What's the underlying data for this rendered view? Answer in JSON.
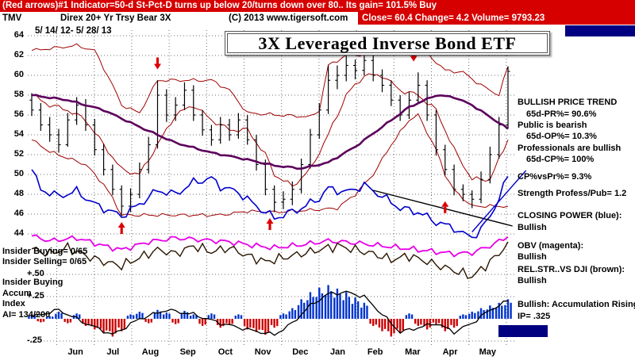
{
  "header": {
    "banner": "(Red arrows)#1 Indicator=50-d St-Pct-D turns up below 20/turns down over 80.. Its gain= 101.5% Buy",
    "symbol": "TMV",
    "name": "Direx 20+ Yr Trsy Bear 3X",
    "copyright": "(C) 2013 www.tigersoft.com",
    "quote": "Close= 60.4 Change= 4.2 Volume= 9793.23",
    "banner_color": "#d60000"
  },
  "chart": {
    "title": "3X Leveraged Inverse Bond ETF",
    "date_range": "5/ 14/ 12- 5/ 28/ 13"
  },
  "left_labels": {
    "insider_buying": "Insider Buying= 0/65",
    "insider_selling": "Insider Selling= 0/65",
    "insider_buying2": "Insider Buying",
    "accum": "Accum",
    "index": "Index",
    "ai": "AI= 134/200"
  },
  "right_panel": {
    "lines": [
      {
        "text": "BULLISH PRICE TREND"
      },
      {
        "text": "65d-PR%= 90.6%"
      },
      {
        "text": "Public is bearish"
      },
      {
        "text": "65d-OP%= 10.3%"
      },
      {
        "text": "Professionals are bullish"
      },
      {
        "text": "65d-CP%= 100%"
      },
      {
        "text": "CP%vsPr%= 9.3%"
      },
      {
        "text": "Strength Profess/Pub= 1.2"
      },
      {
        "text": "CLOSING POWER (blue):"
      },
      {
        "text": "Bullish"
      },
      {
        "text": "OBV (magenta):"
      },
      {
        "text": "Bullish"
      },
      {
        "text": "REL.STR..VS DJI (brown):"
      },
      {
        "text": "Bullish"
      },
      {
        "text": "Bullish: Accumulation Rising"
      },
      {
        "text": "IP= .325"
      }
    ]
  },
  "chart_data": {
    "type": "candlestick",
    "title": "3X Leveraged Inverse Bond ETF",
    "date_range": "5/14/12 - 5/28/13",
    "ylim": [
      44,
      64
    ],
    "accum_range": [
      -0.25,
      0.5
    ],
    "axes": {
      "price_ticks": [
        64,
        62,
        60,
        58,
        56,
        54,
        52,
        50,
        48,
        46,
        44
      ],
      "accum_ticks": [
        {
          "label": "+.50",
          "v": 0.5
        },
        {
          "label": "+.25",
          "v": 0.25
        },
        {
          "label": "-.25",
          "v": -0.25
        }
      ],
      "months": [
        "Jun",
        "Jul",
        "Aug",
        "Sep",
        "Oct",
        "Nov",
        "Dec",
        "Jan",
        "Feb",
        "Mar",
        "Apr",
        "May"
      ]
    },
    "colors": {
      "candle": "#000000",
      "band": "#a00000",
      "ma": "#5c005c",
      "closing_power": "#0000cc",
      "obv": "#e800e8",
      "rel_str": "#2a1600",
      "accum_up": "#0033cc",
      "accum_down": "#cc0000",
      "arrow": "#dd0000",
      "grid": "#707070"
    },
    "candles": [
      [
        57.5,
        58.2,
        55.9,
        56.5
      ],
      [
        56.5,
        57.2,
        54.4,
        55.0
      ],
      [
        55.0,
        55.8,
        53.3,
        54.0
      ],
      [
        54.0,
        54.6,
        52.2,
        53.0
      ],
      [
        53.0,
        56.2,
        52.8,
        55.5
      ],
      [
        55.5,
        57.8,
        55.0,
        57.0
      ],
      [
        57.0,
        57.6,
        54.4,
        55.0
      ],
      [
        55.0,
        55.6,
        51.9,
        52.5
      ],
      [
        52.5,
        53.1,
        49.9,
        50.5
      ],
      [
        50.5,
        51.0,
        47.9,
        48.5
      ],
      [
        48.5,
        48.9,
        45.8,
        46.8
      ],
      [
        46.8,
        48.6,
        46.2,
        48.0
      ],
      [
        48.0,
        51.2,
        47.6,
        50.5
      ],
      [
        50.5,
        53.8,
        50.1,
        53.0
      ],
      [
        53.0,
        59.5,
        52.6,
        58.0
      ],
      [
        58.0,
        58.6,
        55.3,
        56.0
      ],
      [
        56.0,
        57.8,
        55.4,
        57.0
      ],
      [
        57.0,
        59.3,
        56.5,
        58.5
      ],
      [
        58.5,
        59.0,
        55.4,
        56.0
      ],
      [
        56.0,
        56.5,
        53.9,
        54.5
      ],
      [
        54.5,
        55.0,
        52.9,
        53.5
      ],
      [
        53.5,
        55.8,
        53.1,
        55.0
      ],
      [
        55.0,
        55.6,
        53.4,
        54.0
      ],
      [
        54.0,
        56.2,
        53.6,
        55.5
      ],
      [
        55.5,
        56.0,
        53.0,
        53.5
      ],
      [
        53.5,
        54.0,
        50.4,
        51.0
      ],
      [
        51.0,
        51.5,
        47.9,
        48.5
      ],
      [
        48.5,
        48.9,
        46.2,
        47.2
      ],
      [
        47.2,
        48.3,
        46.5,
        47.5
      ],
      [
        47.5,
        49.3,
        46.9,
        48.5
      ],
      [
        48.5,
        51.6,
        48.1,
        51.0
      ],
      [
        51.0,
        54.6,
        50.6,
        54.0
      ],
      [
        54.0,
        57.2,
        53.6,
        56.5
      ],
      [
        56.5,
        61.0,
        56.1,
        59.5
      ],
      [
        59.5,
        61.0,
        58.6,
        60.0
      ],
      [
        60.0,
        62.0,
        59.4,
        61.0
      ],
      [
        61.0,
        61.6,
        59.6,
        60.5
      ],
      [
        60.5,
        62.2,
        60.0,
        61.5
      ],
      [
        61.5,
        62.0,
        59.4,
        60.0
      ],
      [
        60.0,
        60.6,
        58.3,
        59.0
      ],
      [
        59.0,
        59.5,
        56.9,
        57.5
      ],
      [
        57.5,
        58.0,
        55.4,
        56.0
      ],
      [
        56.0,
        58.3,
        55.6,
        57.5
      ],
      [
        57.5,
        60.3,
        57.1,
        59.0
      ],
      [
        59.0,
        59.5,
        55.4,
        56.0
      ],
      [
        56.0,
        56.5,
        51.9,
        52.5
      ],
      [
        52.5,
        53.0,
        49.9,
        50.5
      ],
      [
        50.5,
        51.0,
        47.9,
        48.5
      ],
      [
        48.5,
        49.0,
        47.3,
        48.0
      ],
      [
        48.0,
        48.4,
        46.6,
        47.5
      ],
      [
        47.5,
        50.3,
        47.1,
        49.5
      ],
      [
        49.5,
        52.8,
        49.1,
        52.0
      ],
      [
        52.0,
        55.8,
        51.6,
        55.0
      ],
      [
        55.0,
        60.9,
        54.6,
        60.4
      ]
    ],
    "series": {
      "upper_band": [
        [
          0,
          62.5
        ],
        [
          3,
          62.8
        ],
        [
          5,
          63.0
        ],
        [
          7,
          62.5
        ],
        [
          9,
          59.0
        ],
        [
          10,
          57.0
        ],
        [
          12,
          56.2
        ],
        [
          14,
          59.5
        ],
        [
          20,
          59.5
        ],
        [
          22,
          58.5
        ],
        [
          24,
          56.2
        ],
        [
          31,
          55.8
        ],
        [
          32,
          56.5
        ],
        [
          33,
          61.0
        ],
        [
          35,
          62.0
        ],
        [
          38,
          62.2
        ],
        [
          44,
          62.2
        ],
        [
          46,
          60.5
        ],
        [
          48,
          60.3
        ],
        [
          50,
          59.0
        ],
        [
          52,
          58.0
        ],
        [
          53,
          60.9
        ]
      ],
      "lower_band": [
        [
          0,
          53.5
        ],
        [
          2,
          52.3
        ],
        [
          6,
          51.0
        ],
        [
          8,
          49.0
        ],
        [
          9,
          47.6
        ],
        [
          10,
          45.9
        ],
        [
          21,
          45.9
        ],
        [
          24,
          46.3
        ],
        [
          27,
          46.2
        ],
        [
          31,
          46.4
        ],
        [
          34,
          46.6
        ],
        [
          36,
          48.0
        ],
        [
          38,
          50.0
        ],
        [
          40,
          53.0
        ],
        [
          42,
          55.5
        ],
        [
          43,
          56.0
        ],
        [
          45,
          52.5
        ],
        [
          46,
          50.0
        ],
        [
          47,
          48.4
        ],
        [
          49,
          46.8
        ],
        [
          53,
          46.8
        ]
      ],
      "mid_band": [
        [
          0,
          58.0
        ],
        [
          2,
          57.0
        ],
        [
          4,
          56.5
        ],
        [
          6,
          55.5
        ],
        [
          8,
          53.0
        ],
        [
          10,
          50.5
        ],
        [
          12,
          50.0
        ],
        [
          14,
          53.0
        ],
        [
          16,
          56.0
        ],
        [
          18,
          57.0
        ],
        [
          20,
          55.5
        ],
        [
          22,
          54.5
        ],
        [
          24,
          54.5
        ],
        [
          26,
          52.0
        ],
        [
          27,
          50.0
        ],
        [
          29,
          48.8
        ],
        [
          31,
          50.5
        ],
        [
          33,
          54.0
        ],
        [
          35,
          58.0
        ],
        [
          37,
          60.0
        ],
        [
          39,
          60.0
        ],
        [
          41,
          58.5
        ],
        [
          43,
          58.0
        ],
        [
          45,
          56.5
        ],
        [
          47,
          52.5
        ],
        [
          49,
          49.5
        ],
        [
          51,
          49.5
        ],
        [
          53,
          53.5
        ]
      ],
      "ma": [
        [
          0,
          58.0
        ],
        [
          4,
          57.5
        ],
        [
          8,
          56.5
        ],
        [
          12,
          54.8
        ],
        [
          16,
          53.2
        ],
        [
          20,
          52.2
        ],
        [
          24,
          51.5
        ],
        [
          27,
          50.9
        ],
        [
          30,
          50.6
        ],
        [
          33,
          51.2
        ],
        [
          36,
          52.8
        ],
        [
          39,
          54.8
        ],
        [
          42,
          56.8
        ],
        [
          45,
          58.0
        ],
        [
          47,
          57.8
        ],
        [
          49,
          57.0
        ],
        [
          51,
          55.8
        ],
        [
          53,
          54.6
        ]
      ],
      "closing_power": [
        [
          0,
          50.5
        ],
        [
          1,
          48.5
        ],
        [
          3,
          47.8
        ],
        [
          5,
          48.3
        ],
        [
          7,
          47.0
        ],
        [
          9,
          46.2
        ],
        [
          10,
          45.8
        ],
        [
          12,
          47.0
        ],
        [
          14,
          48.4
        ],
        [
          16,
          48.0
        ],
        [
          18,
          49.2
        ],
        [
          20,
          49.6
        ],
        [
          21,
          48.8
        ],
        [
          23,
          48.2
        ],
        [
          25,
          46.8
        ],
        [
          27,
          45.6
        ],
        [
          28,
          45.9
        ],
        [
          30,
          46.6
        ],
        [
          32,
          47.6
        ],
        [
          33,
          48.6
        ],
        [
          35,
          48.2
        ],
        [
          37,
          48.9
        ],
        [
          39,
          47.8
        ],
        [
          41,
          46.6
        ],
        [
          43,
          46.2
        ],
        [
          45,
          45.2
        ],
        [
          47,
          44.6
        ],
        [
          48,
          44.0
        ],
        [
          49,
          43.7
        ],
        [
          50,
          44.4
        ],
        [
          51,
          45.8
        ],
        [
          52,
          47.6
        ],
        [
          53,
          49.8
        ]
      ],
      "obv": [
        [
          0,
          43.8
        ],
        [
          2,
          43.3
        ],
        [
          5,
          43.6
        ],
        [
          8,
          42.8
        ],
        [
          10,
          42.4
        ],
        [
          13,
          43.2
        ],
        [
          16,
          43.6
        ],
        [
          19,
          43.4
        ],
        [
          22,
          43.2
        ],
        [
          25,
          42.8
        ],
        [
          27,
          42.6
        ],
        [
          30,
          42.9
        ],
        [
          33,
          43.3
        ],
        [
          36,
          43.1
        ],
        [
          39,
          42.8
        ],
        [
          42,
          42.5
        ],
        [
          45,
          42.2
        ],
        [
          47,
          42.0
        ],
        [
          49,
          42.1
        ],
        [
          51,
          42.8
        ],
        [
          53,
          43.7
        ]
      ],
      "rel_str": [
        [
          0,
          42.5
        ],
        [
          2,
          42.0
        ],
        [
          4,
          42.6
        ],
        [
          6,
          41.8
        ],
        [
          8,
          41.2
        ],
        [
          10,
          40.8
        ],
        [
          12,
          41.6
        ],
        [
          14,
          42.4
        ],
        [
          16,
          42.0
        ],
        [
          18,
          42.8
        ],
        [
          20,
          42.2
        ],
        [
          22,
          42.6
        ],
        [
          24,
          41.8
        ],
        [
          26,
          41.2
        ],
        [
          28,
          41.6
        ],
        [
          30,
          42.0
        ],
        [
          32,
          42.4
        ],
        [
          34,
          42.8
        ],
        [
          36,
          42.4
        ],
        [
          38,
          42.0
        ],
        [
          40,
          41.4
        ],
        [
          42,
          41.8
        ],
        [
          44,
          41.2
        ],
        [
          46,
          40.6
        ],
        [
          48,
          40.0
        ],
        [
          49,
          39.7
        ],
        [
          50,
          40.4
        ],
        [
          51,
          41.2
        ],
        [
          52,
          42.0
        ],
        [
          53,
          43.2
        ]
      ],
      "accum_line": [
        [
          0,
          0.02
        ],
        [
          3,
          0.1
        ],
        [
          6,
          -0.05
        ],
        [
          9,
          -0.18
        ],
        [
          12,
          0.0
        ],
        [
          15,
          0.1
        ],
        [
          18,
          0.05
        ],
        [
          21,
          -0.05
        ],
        [
          24,
          -0.12
        ],
        [
          27,
          -0.18
        ],
        [
          29,
          -0.05
        ],
        [
          31,
          0.15
        ],
        [
          33,
          0.28
        ],
        [
          35,
          0.3
        ],
        [
          37,
          0.25
        ],
        [
          39,
          0.05
        ],
        [
          41,
          -0.15
        ],
        [
          43,
          -0.1
        ],
        [
          45,
          -0.05
        ],
        [
          47,
          -0.15
        ],
        [
          49,
          -0.05
        ],
        [
          51,
          0.1
        ],
        [
          53,
          0.2
        ]
      ]
    },
    "accum_bars": [
      [
        0.05,
        "b"
      ],
      [
        -0.04,
        "r"
      ],
      [
        0.03,
        "b"
      ],
      [
        0.08,
        "b"
      ],
      [
        -0.05,
        "r"
      ],
      [
        0.06,
        "b"
      ],
      [
        -0.08,
        "r"
      ],
      [
        -0.12,
        "r"
      ],
      [
        -0.16,
        "r"
      ],
      [
        -0.2,
        "r"
      ],
      [
        -0.14,
        "r"
      ],
      [
        0.05,
        "b"
      ],
      [
        0.08,
        "b"
      ],
      [
        -0.05,
        "r"
      ],
      [
        0.1,
        "b"
      ],
      [
        0.07,
        "b"
      ],
      [
        -0.06,
        "r"
      ],
      [
        0.09,
        "b"
      ],
      [
        0.05,
        "b"
      ],
      [
        -0.08,
        "r"
      ],
      [
        0.06,
        "b"
      ],
      [
        -0.1,
        "r"
      ],
      [
        -0.07,
        "r"
      ],
      [
        0.05,
        "b"
      ],
      [
        -0.12,
        "r"
      ],
      [
        -0.15,
        "r"
      ],
      [
        -0.18,
        "r"
      ],
      [
        -0.1,
        "r"
      ],
      [
        0.06,
        "b"
      ],
      [
        0.12,
        "b"
      ],
      [
        0.22,
        "b"
      ],
      [
        0.3,
        "b"
      ],
      [
        0.35,
        "b"
      ],
      [
        0.38,
        "b"
      ],
      [
        0.34,
        "b"
      ],
      [
        0.3,
        "b"
      ],
      [
        0.24,
        "b"
      ],
      [
        0.18,
        "b"
      ],
      [
        -0.08,
        "r"
      ],
      [
        -0.14,
        "r"
      ],
      [
        -0.2,
        "r"
      ],
      [
        -0.16,
        "r"
      ],
      [
        0.06,
        "b"
      ],
      [
        -0.08,
        "r"
      ],
      [
        -0.12,
        "r"
      ],
      [
        -0.06,
        "r"
      ],
      [
        -0.14,
        "r"
      ],
      [
        -0.1,
        "r"
      ],
      [
        0.05,
        "b"
      ],
      [
        0.08,
        "b"
      ],
      [
        0.12,
        "b"
      ],
      [
        0.15,
        "b"
      ],
      [
        0.18,
        "b"
      ],
      [
        0.22,
        "b"
      ]
    ],
    "arrows": [
      {
        "i": 14,
        "dir": "down",
        "price": 60.6
      },
      {
        "i": 32.8,
        "dir": "down",
        "price": 62.1
      },
      {
        "i": 42.5,
        "dir": "down",
        "price": 61.4
      },
      {
        "i": 10,
        "dir": "up",
        "price": 45.2
      },
      {
        "i": 26.5,
        "dir": "up",
        "price": 45.6
      },
      {
        "i": 46,
        "dir": "up",
        "price": 47.3
      }
    ],
    "trendlines": [
      {
        "i1": 38,
        "p1": 48.4,
        "i2": 53.5,
        "p2": 44.8,
        "color": "#000000"
      },
      {
        "i1": 49,
        "p1": 44.2,
        "i2": 55,
        "p2": 50.4,
        "color": "#0000cc"
      }
    ]
  }
}
